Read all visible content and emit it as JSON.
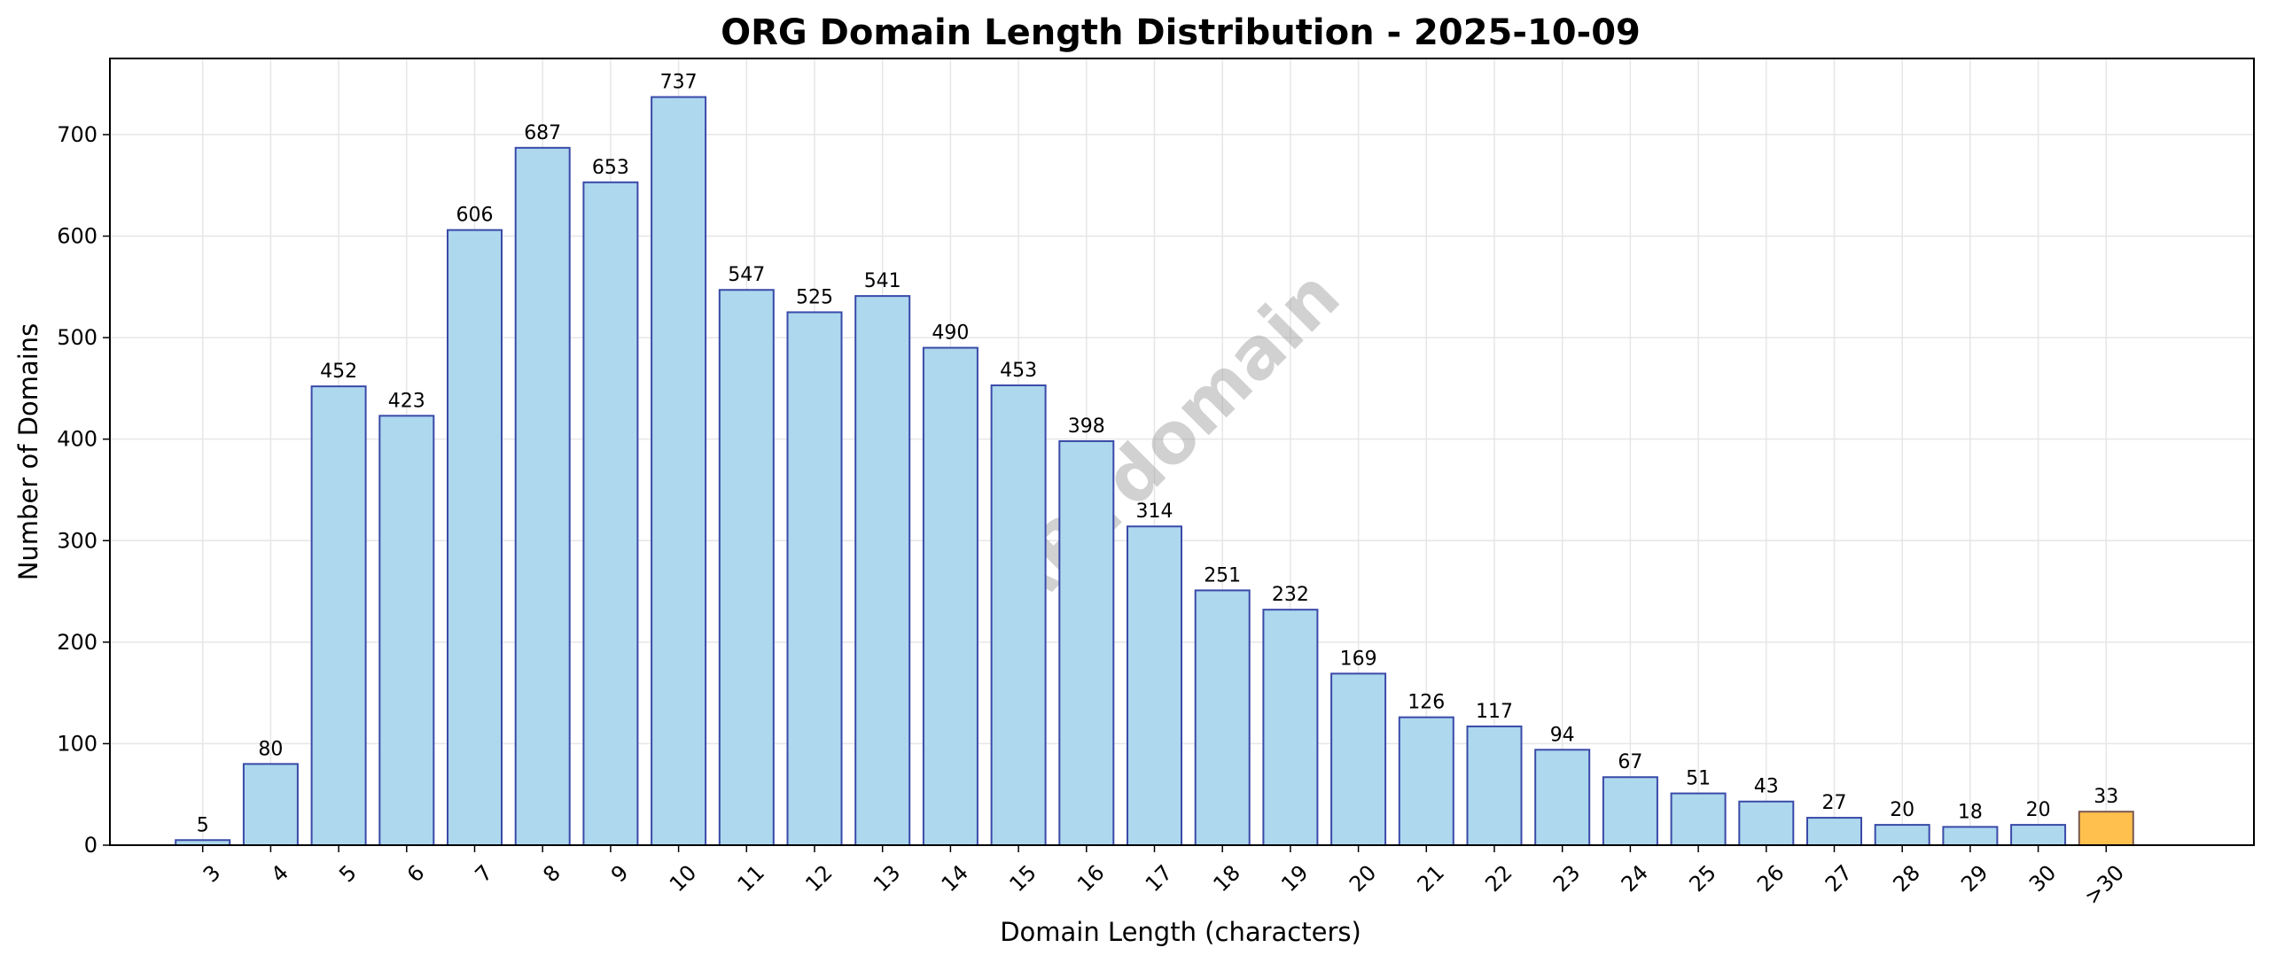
{
  "chart_data": {
    "type": "bar",
    "title": "ORG Domain Length Distribution - 2025-10-09",
    "xlabel": "Domain Length (characters)",
    "ylabel": "Number of Domains",
    "categories": [
      "3",
      "4",
      "5",
      "6",
      "7",
      "8",
      "9",
      "10",
      "11",
      "12",
      "13",
      "14",
      "15",
      "16",
      "17",
      "18",
      "19",
      "20",
      "21",
      "22",
      "23",
      "24",
      "25",
      "26",
      "27",
      "28",
      "29",
      "30",
      ">30"
    ],
    "values": [
      5,
      80,
      452,
      423,
      606,
      687,
      653,
      737,
      547,
      525,
      541,
      490,
      453,
      398,
      314,
      251,
      232,
      169,
      126,
      117,
      94,
      67,
      51,
      43,
      27,
      20,
      18,
      20,
      33
    ],
    "ylim": [
      0,
      775
    ],
    "yticks": [
      0,
      100,
      200,
      300,
      400,
      500,
      600,
      700
    ],
    "grid": true,
    "legend": "none",
    "colors": {
      "bar_fill": "#add8ee",
      "bar_edge": "#3a4aa8",
      "highlight_fill": "#ffc04d",
      "highlight_edge": "#7a5a50"
    },
    "highlight_category": ">30",
    "watermark": "ABTdomain"
  }
}
